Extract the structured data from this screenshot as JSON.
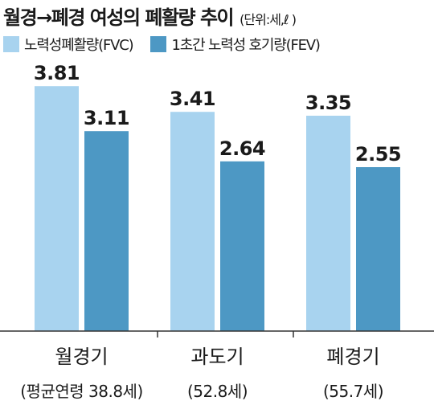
{
  "header": {
    "title": "월경→폐경 여성의 폐활량 추이",
    "unit": "(단위:세,ℓ )"
  },
  "colors": {
    "fvc": "#a8d3ef",
    "fev": "#4d98c4",
    "axis": "#333333"
  },
  "chart_data": {
    "type": "bar",
    "categories": [
      "월경기",
      "과도기",
      "폐경기"
    ],
    "category_subtitles": [
      "(평균연령 38.8세)",
      "(52.8세)",
      "(55.7세)"
    ],
    "series": [
      {
        "name": "노력성폐활량(FVC)",
        "values": [
          3.81,
          3.41,
          3.35
        ]
      },
      {
        "name": "1초간 노력성 호기량(FEV)",
        "values": [
          3.11,
          2.64,
          2.55
        ]
      }
    ],
    "ylim": [
      0,
      4.2
    ],
    "value_labels": [
      "3.81",
      "3.41",
      "3.35",
      "3.11",
      "2.64",
      "2.55"
    ],
    "legend_position": "top-left",
    "grid": false
  }
}
